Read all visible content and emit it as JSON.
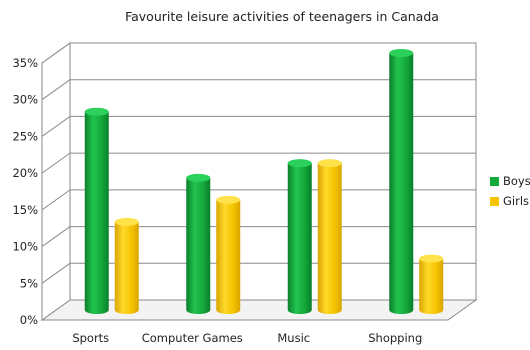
{
  "chart_data": {
    "type": "bar",
    "title": "Favourite leisure activities of teenagers in Canada",
    "xlabel": "",
    "ylabel": "",
    "categories": [
      "Sports",
      "Computer Games",
      "Music",
      "Shopping"
    ],
    "series": [
      {
        "name": "Boys",
        "values": [
          27,
          18,
          20,
          35
        ],
        "color": "#13a83b"
      },
      {
        "name": "Girls",
        "values": [
          12,
          15,
          20,
          7
        ],
        "color": "#f5c400"
      }
    ],
    "ylim": [
      0,
      35
    ],
    "yticks": [
      "0%",
      "5%",
      "10%",
      "15%",
      "20%",
      "25%",
      "30%",
      "35%"
    ],
    "grid": true,
    "legend_position": "right",
    "style": "3d-cylinder"
  }
}
